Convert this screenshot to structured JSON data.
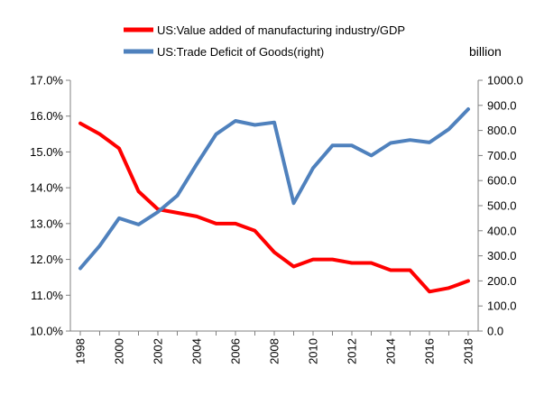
{
  "chart_data": {
    "type": "line",
    "x": [
      1998,
      1999,
      2000,
      2001,
      2002,
      2003,
      2004,
      2005,
      2006,
      2007,
      2008,
      2009,
      2010,
      2011,
      2012,
      2013,
      2014,
      2015,
      2016,
      2017,
      2018
    ],
    "x_tick_labels": [
      "1998",
      "2000",
      "2002",
      "2004",
      "2006",
      "2008",
      "2010",
      "2012",
      "2014",
      "2016",
      "2018"
    ],
    "series": [
      {
        "name": "US:Value added of manufacturing industry/GDP",
        "axis": "left",
        "color": "#ff0000",
        "values": [
          15.8,
          15.5,
          15.1,
          13.9,
          13.4,
          13.3,
          13.2,
          13.0,
          13.0,
          12.8,
          12.2,
          11.8,
          12.0,
          12.0,
          11.9,
          11.9,
          11.7,
          11.7,
          11.1,
          11.2,
          11.4
        ]
      },
      {
        "name": "US:Trade Deficit of Goods(right)",
        "axis": "right",
        "color": "#4f81bd",
        "values": [
          250,
          340,
          450,
          425,
          475,
          540,
          665,
          785,
          838,
          822,
          832,
          510,
          650,
          740,
          740,
          700,
          750,
          762,
          752,
          805,
          885
        ]
      }
    ],
    "y_left": {
      "ylim": [
        10.0,
        17.0
      ],
      "tick_labels": [
        "10.0%",
        "11.0%",
        "12.0%",
        "13.0%",
        "14.0%",
        "15.0%",
        "16.0%",
        "17.0%"
      ]
    },
    "y_right": {
      "unit": "billion",
      "ylim": [
        0,
        1000
      ],
      "tick_labels": [
        "0.0",
        "100.0",
        "200.0",
        "300.0",
        "400.0",
        "500.0",
        "600.0",
        "700.0",
        "800.0",
        "900.0",
        "1000.0"
      ]
    },
    "grid": false,
    "legend_position": "top"
  }
}
